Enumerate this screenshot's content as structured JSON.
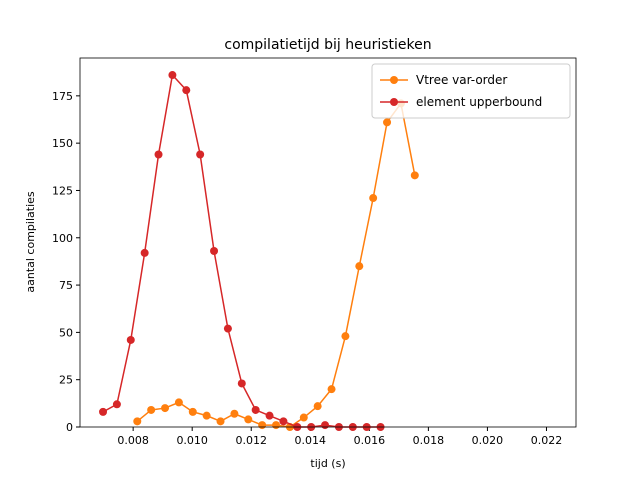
{
  "chart_data": {
    "type": "line",
    "title": "compilatietijd bij heuristieken",
    "xlabel": "tijd (s)",
    "ylabel": "aantal compilaties",
    "xlim": [
      0.0062,
      0.023
    ],
    "ylim": [
      0,
      195
    ],
    "xticks": [
      0.008,
      {
        "value": 0.01,
        "label": "0.010"
      },
      0.012,
      0.014,
      0.016,
      0.018,
      {
        "value": 0.02,
        "label": "0.020"
      },
      0.022
    ],
    "yticks": [
      0,
      25,
      50,
      75,
      100,
      125,
      150,
      175
    ],
    "legend": "upper right",
    "series": [
      {
        "name": "Vtree var-order",
        "color": "#ff7f0e",
        "x": [
          0.00814,
          0.00861,
          0.00908,
          0.00955,
          0.01002,
          0.01049,
          0.01096,
          0.01143,
          0.0119,
          0.01237,
          0.01284,
          0.01331,
          0.01378,
          0.01425,
          0.01472,
          0.01519,
          0.01566,
          0.01613,
          0.0166,
          0.01707,
          0.01754
        ],
        "values": [
          3,
          9,
          10,
          13,
          8,
          6,
          3,
          7,
          4,
          1,
          1,
          0,
          5,
          11,
          20,
          48,
          85,
          121,
          161,
          171,
          133
        ]
      },
      {
        "name": "element upperbound",
        "color": "#d62728",
        "x": [
          0.00698,
          0.00745,
          0.00792,
          0.00839,
          0.00886,
          0.00933,
          0.0098,
          0.01027,
          0.01074,
          0.01121,
          0.01168,
          0.01215,
          0.01262,
          0.01309,
          0.01356,
          0.01403,
          0.0145,
          0.01497,
          0.01544,
          0.01591,
          0.01638
        ],
        "values": [
          8,
          12,
          46,
          92,
          144,
          186,
          178,
          144,
          93,
          52,
          23,
          9,
          6,
          3,
          0,
          0,
          1,
          0,
          0,
          0,
          0
        ]
      }
    ]
  }
}
